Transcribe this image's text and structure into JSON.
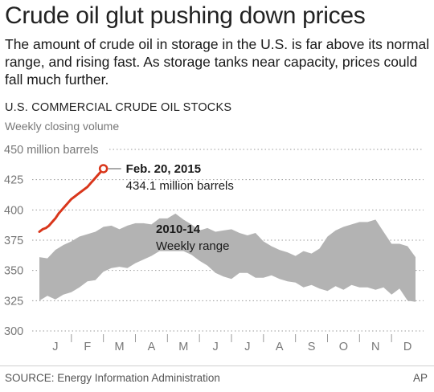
{
  "header": {
    "title": "Crude oil glut pushing down prices",
    "subtitle": "The amount of crude oil in storage in the U.S. is far above its normal range, and rising fast. As storage tanks near capacity, prices could fall much further."
  },
  "chart_data": {
    "type": "area",
    "title": "U.S. COMMERCIAL CRUDE OIL STOCKS",
    "subtitle": "Weekly closing volume",
    "ylabel": "",
    "ylim": [
      300,
      450
    ],
    "yticks": [
      {
        "value": 450,
        "label": "450 million barrels"
      },
      {
        "value": 425,
        "label": "425"
      },
      {
        "value": 400,
        "label": "400"
      },
      {
        "value": 375,
        "label": "375"
      },
      {
        "value": 350,
        "label": "350"
      },
      {
        "value": 325,
        "label": "325"
      },
      {
        "value": 300,
        "label": "300"
      }
    ],
    "xlim": [
      0,
      12
    ],
    "months": [
      "J",
      "F",
      "M",
      "A",
      "M",
      "J",
      "J",
      "A",
      "S",
      "O",
      "N",
      "D"
    ],
    "grid": true,
    "range_band": {
      "name": "2010-14",
      "label_line2": "Weekly range",
      "color": "#b3b3b3",
      "upper": [
        [
          0.0,
          361
        ],
        [
          0.25,
          360
        ],
        [
          0.5,
          367
        ],
        [
          0.75,
          371
        ],
        [
          1.0,
          374
        ],
        [
          1.25,
          378
        ],
        [
          1.5,
          380
        ],
        [
          1.75,
          382
        ],
        [
          2.0,
          386
        ],
        [
          2.25,
          387
        ],
        [
          2.5,
          384
        ],
        [
          2.75,
          387
        ],
        [
          3.0,
          389
        ],
        [
          3.25,
          389
        ],
        [
          3.5,
          388
        ],
        [
          3.75,
          393
        ],
        [
          4.0,
          393
        ],
        [
          4.25,
          397
        ],
        [
          4.5,
          392
        ],
        [
          4.75,
          388
        ],
        [
          5.0,
          383
        ],
        [
          5.25,
          385
        ],
        [
          5.5,
          382
        ],
        [
          5.75,
          383
        ],
        [
          6.0,
          384
        ],
        [
          6.25,
          381
        ],
        [
          6.5,
          379
        ],
        [
          6.75,
          381
        ],
        [
          7.0,
          374
        ],
        [
          7.25,
          370
        ],
        [
          7.5,
          367
        ],
        [
          7.75,
          365
        ],
        [
          8.0,
          362
        ],
        [
          8.25,
          366
        ],
        [
          8.5,
          364
        ],
        [
          8.75,
          368
        ],
        [
          9.0,
          378
        ],
        [
          9.25,
          383
        ],
        [
          9.5,
          386
        ],
        [
          9.75,
          388
        ],
        [
          10.0,
          390
        ],
        [
          10.25,
          390
        ],
        [
          10.5,
          392
        ],
        [
          10.75,
          382
        ],
        [
          11.0,
          372
        ],
        [
          11.25,
          372
        ],
        [
          11.5,
          370
        ],
        [
          11.75,
          361
        ]
      ],
      "lower": [
        [
          0.0,
          325
        ],
        [
          0.25,
          329
        ],
        [
          0.5,
          326
        ],
        [
          0.75,
          330
        ],
        [
          1.0,
          332
        ],
        [
          1.25,
          336
        ],
        [
          1.5,
          341
        ],
        [
          1.75,
          342
        ],
        [
          2.0,
          349
        ],
        [
          2.25,
          352
        ],
        [
          2.5,
          353
        ],
        [
          2.75,
          352
        ],
        [
          3.0,
          356
        ],
        [
          3.25,
          359
        ],
        [
          3.5,
          362
        ],
        [
          3.75,
          366
        ],
        [
          4.0,
          366
        ],
        [
          4.25,
          366
        ],
        [
          4.5,
          366
        ],
        [
          4.75,
          363
        ],
        [
          5.0,
          358
        ],
        [
          5.25,
          354
        ],
        [
          5.5,
          348
        ],
        [
          5.75,
          345
        ],
        [
          6.0,
          343
        ],
        [
          6.25,
          348
        ],
        [
          6.5,
          348
        ],
        [
          6.75,
          344
        ],
        [
          7.0,
          344
        ],
        [
          7.25,
          346
        ],
        [
          7.5,
          343
        ],
        [
          7.75,
          341
        ],
        [
          8.0,
          340
        ],
        [
          8.25,
          336
        ],
        [
          8.5,
          338
        ],
        [
          8.75,
          335
        ],
        [
          9.0,
          333
        ],
        [
          9.25,
          337
        ],
        [
          9.5,
          334
        ],
        [
          9.75,
          338
        ],
        [
          10.0,
          336
        ],
        [
          10.25,
          336
        ],
        [
          10.5,
          334
        ],
        [
          10.75,
          336
        ],
        [
          11.0,
          330
        ],
        [
          11.25,
          335
        ],
        [
          11.5,
          325
        ],
        [
          11.75,
          324
        ]
      ]
    },
    "series": [
      {
        "name": "2015",
        "color": "#d9361b",
        "points": [
          [
            0.0,
            382
          ],
          [
            0.1,
            384
          ],
          [
            0.2,
            385
          ],
          [
            0.3,
            387
          ],
          [
            0.4,
            390
          ],
          [
            0.5,
            393
          ],
          [
            0.6,
            397
          ],
          [
            0.7,
            400
          ],
          [
            0.8,
            403
          ],
          [
            0.9,
            406
          ],
          [
            1.0,
            409
          ],
          [
            1.1,
            411
          ],
          [
            1.2,
            413
          ],
          [
            1.3,
            415
          ],
          [
            1.4,
            417
          ],
          [
            1.5,
            419
          ],
          [
            1.6,
            422
          ],
          [
            1.7,
            425
          ],
          [
            1.8,
            428
          ],
          [
            1.9,
            431
          ],
          [
            2.0,
            434.1
          ]
        ]
      }
    ],
    "annotations": [
      {
        "date": "Feb. 20, 2015",
        "value_text": "434.1 million barrels"
      }
    ]
  },
  "footer": {
    "source": "SOURCE: Energy Information Administration",
    "credit": "AP"
  }
}
